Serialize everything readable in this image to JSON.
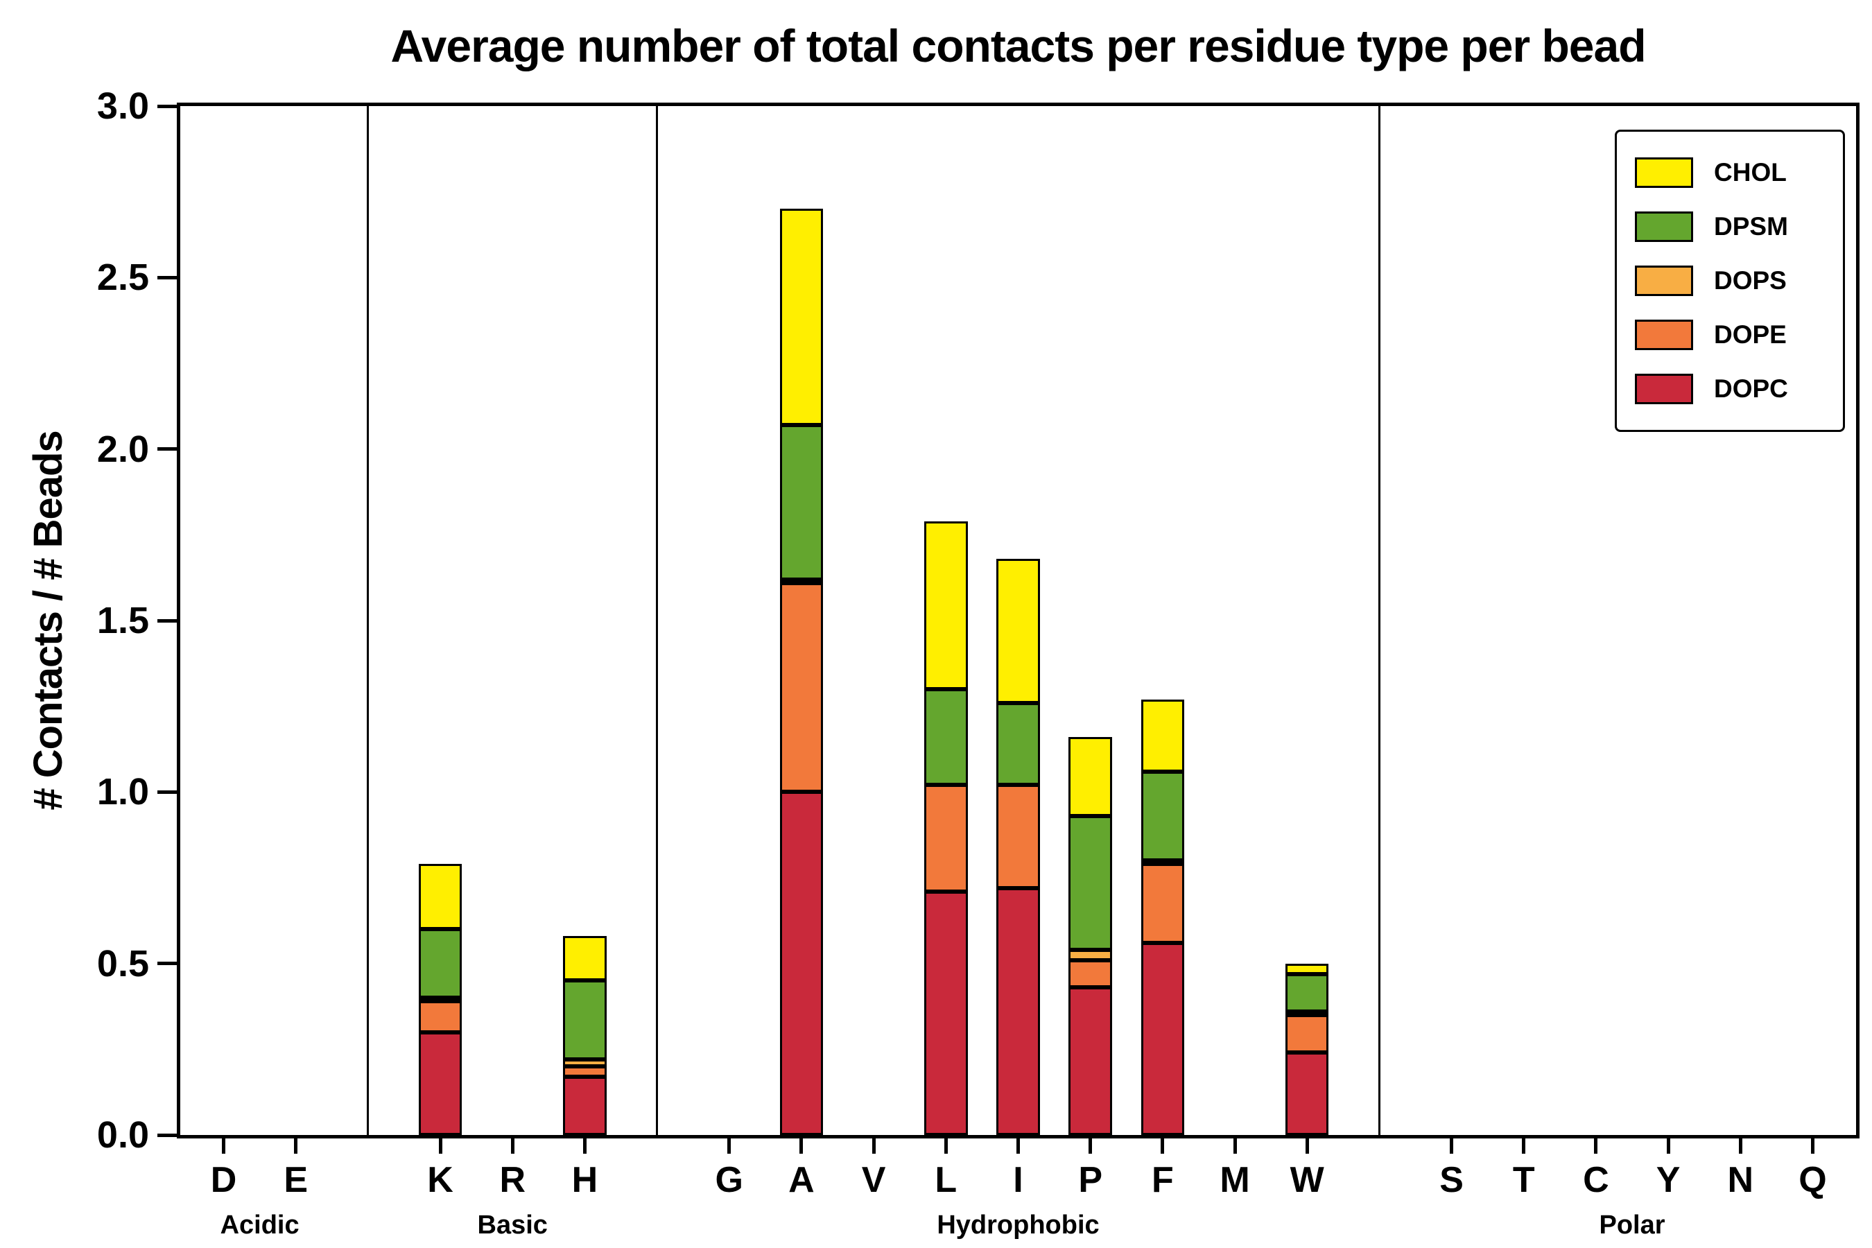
{
  "chart_data": {
    "type": "bar",
    "stacked": true,
    "title": "Average number of total contacts per residue type per bead",
    "xlabel": "",
    "ylabel": "# Contacts / # Beads",
    "ylim": [
      0,
      3.0
    ],
    "yticks": [
      "0.0",
      "0.5",
      "1.0",
      "1.5",
      "2.0",
      "2.5",
      "3.0"
    ],
    "grid": false,
    "groups": [
      {
        "label": "Acidic",
        "residues": [
          "D",
          "E"
        ]
      },
      {
        "label": "Basic",
        "residues": [
          "K",
          "R",
          "H"
        ]
      },
      {
        "label": "Hydrophobic",
        "residues": [
          "G",
          "A",
          "V",
          "L",
          "I",
          "P",
          "F",
          "M",
          "W"
        ]
      },
      {
        "label": "Polar",
        "residues": [
          "S",
          "T",
          "C",
          "Y",
          "N",
          "Q"
        ]
      }
    ],
    "categories": [
      "D",
      "E",
      "K",
      "R",
      "H",
      "G",
      "A",
      "V",
      "L",
      "I",
      "P",
      "F",
      "M",
      "W",
      "S",
      "T",
      "C",
      "Y",
      "N",
      "Q"
    ],
    "series": [
      {
        "name": "DOPC",
        "color": "#C9293B",
        "values": [
          0,
          0,
          0.3,
          0,
          0.17,
          0,
          1.0,
          0,
          0.71,
          0.72,
          0.43,
          0.56,
          0,
          0.24,
          0,
          0,
          0,
          0,
          0,
          0
        ]
      },
      {
        "name": "DOPE",
        "color": "#F2793B",
        "values": [
          0,
          0,
          0.09,
          0,
          0.03,
          0,
          0.61,
          0,
          0.31,
          0.3,
          0.08,
          0.23,
          0,
          0.11,
          0,
          0,
          0,
          0,
          0,
          0
        ]
      },
      {
        "name": "DOPS",
        "color": "#F8AE44",
        "values": [
          0,
          0,
          0.01,
          0,
          0.02,
          0,
          0.01,
          0,
          0.0,
          0.0,
          0.03,
          0.01,
          0,
          0.01,
          0,
          0,
          0,
          0,
          0,
          0
        ]
      },
      {
        "name": "DPSM",
        "color": "#64A62E",
        "values": [
          0,
          0,
          0.2,
          0,
          0.23,
          0,
          0.45,
          0,
          0.28,
          0.24,
          0.39,
          0.26,
          0,
          0.11,
          0,
          0,
          0,
          0,
          0,
          0
        ]
      },
      {
        "name": "CHOL",
        "color": "#FFEF00",
        "values": [
          0,
          0,
          0.19,
          0,
          0.13,
          0,
          0.63,
          0,
          0.49,
          0.42,
          0.23,
          0.21,
          0,
          0.03,
          0,
          0,
          0,
          0,
          0,
          0
        ]
      }
    ],
    "legend": {
      "position": "upper right",
      "entries": [
        "CHOL",
        "DPSM",
        "DOPS",
        "DOPE",
        "DOPC"
      ]
    }
  }
}
